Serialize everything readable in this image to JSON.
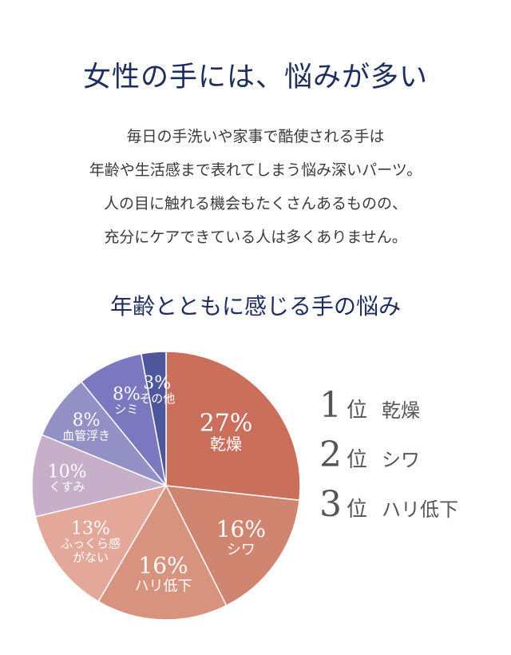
{
  "header": {
    "title": "女性の手には、悩みが多い",
    "intro_lines": [
      "毎日の手洗いや家事で酷使される手は",
      "年齢や生活感まで表れてしまう悩み深いパーツ。",
      "人の目に触れる機会もたくさんあるものの、",
      "充分にケアできている人は多くありません。"
    ]
  },
  "chart_data": {
    "type": "pie",
    "title": "年齢とともに感じる手の悩み",
    "slices": [
      {
        "label_lines": [
          "乾燥"
        ],
        "value": 27,
        "value_text": "27%",
        "color": "#c96f5c"
      },
      {
        "label_lines": [
          "シワ"
        ],
        "value": 16,
        "value_text": "16%",
        "color": "#d08571"
      },
      {
        "label_lines": [
          "ハリ低下"
        ],
        "value": 16,
        "value_text": "16%",
        "color": "#d8937f"
      },
      {
        "label_lines": [
          "ふっくら感",
          "がない"
        ],
        "value": 13,
        "value_text": "13%",
        "color": "#e4a89a"
      },
      {
        "label_lines": [
          "くすみ"
        ],
        "value": 10,
        "value_text": "10%",
        "color": "#c7aec9"
      },
      {
        "label_lines": [
          "血管浮き"
        ],
        "value": 8,
        "value_text": "8%",
        "color": "#9390c5"
      },
      {
        "label_lines": [
          "シミ"
        ],
        "value": 8,
        "value_text": "8%",
        "color": "#7c78c0"
      },
      {
        "label_lines": [
          "その他"
        ],
        "value": 3,
        "value_text": "3%",
        "color": "#4e579c"
      }
    ],
    "label_color": "#ffffff"
  },
  "ranking": [
    {
      "num": "1",
      "suffix": "位",
      "label": "乾燥"
    },
    {
      "num": "2",
      "suffix": "位",
      "label": "シワ"
    },
    {
      "num": "3",
      "suffix": "位",
      "label": "ハリ低下"
    }
  ]
}
